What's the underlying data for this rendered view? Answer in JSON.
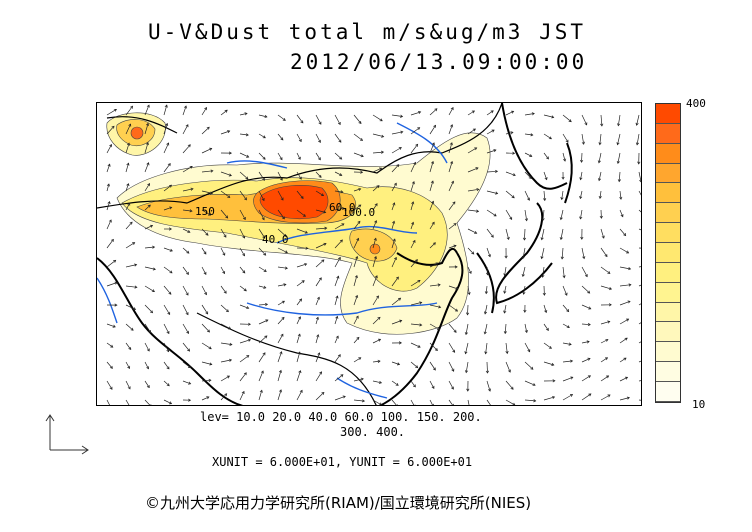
{
  "title": "U-V&Dust total m/s&ug/m3 JST",
  "datetime": "2012/06/13.09:00:00",
  "colorbar": {
    "max_label": "400",
    "min_label": "10",
    "colors": [
      "#ff4a00",
      "#ff6a1a",
      "#ff8c1a",
      "#ffa62e",
      "#ffc03c",
      "#ffd050",
      "#ffde60",
      "#ffe870",
      "#fff07f",
      "#fff490",
      "#fff6a8",
      "#fff8bc",
      "#fffbd0",
      "#fffde2",
      "#fffef0"
    ]
  },
  "levels": {
    "line1": "lev= 10.0 20.0 40.0 60.0 100. 150. 200.",
    "line2": "300. 400."
  },
  "units": "XUNIT = 6.000E+01, YUNIT = 6.000E+01",
  "contour_labels": [
    "150",
    "60.0",
    "40.0",
    "100.0"
  ],
  "credit": "©九州大学応用力学研究所(RIAM)/国立環境研究所(NIES)"
}
